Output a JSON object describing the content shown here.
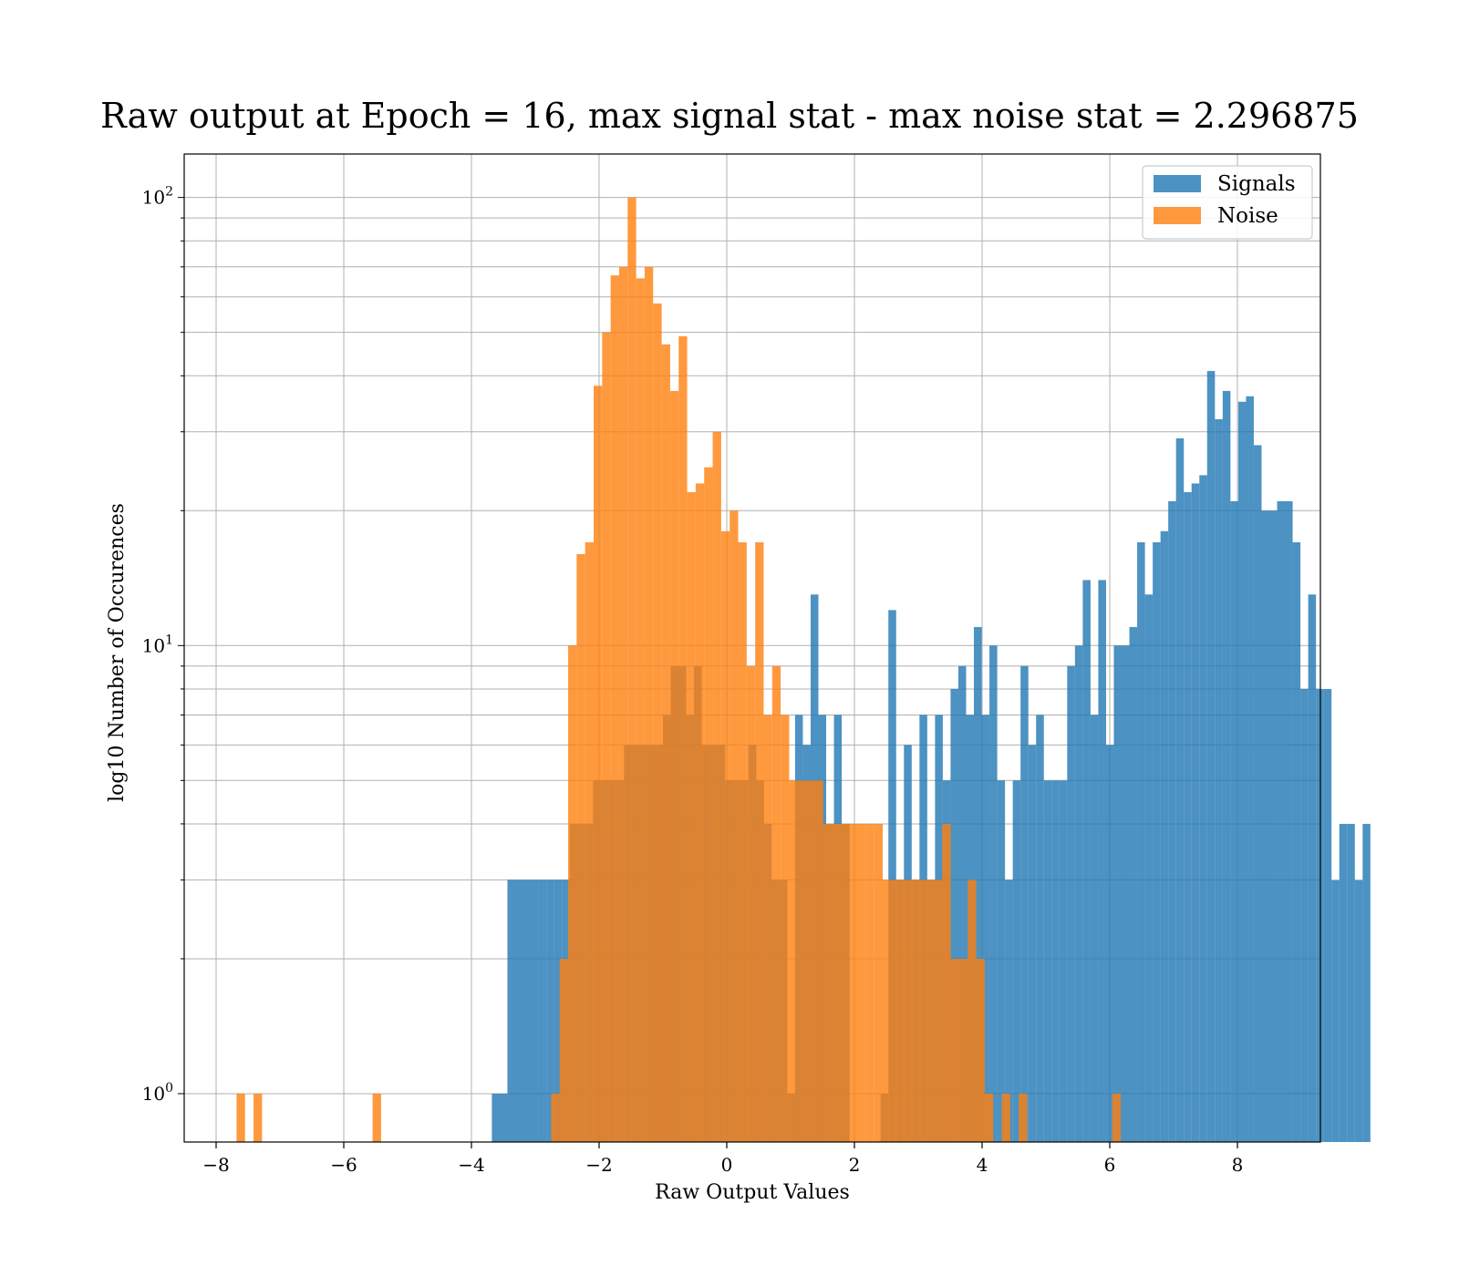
{
  "chart_data": {
    "type": "histogram",
    "title": "Raw output at Epoch = 16, max signal stat - max noise stat = 2.296875",
    "xlabel": "Raw Output Values",
    "ylabel": "log10 Number of Occurences",
    "xlim": [
      -8.5,
      9.3
    ],
    "ylim": [
      0.78,
      125
    ],
    "yscale": "log",
    "grid": true,
    "legend_position": "top-right",
    "xticks": [
      -8,
      -6,
      -4,
      -2,
      0,
      2,
      4,
      6,
      8
    ],
    "xtick_labels": [
      "−8",
      "−6",
      "−4",
      "−2",
      "0",
      "2",
      "4",
      "6",
      "8"
    ],
    "yticks": [
      {
        "value": 1,
        "base": "10",
        "exp": "0"
      },
      {
        "value": 10,
        "base": "10",
        "exp": "1"
      },
      {
        "value": 100,
        "base": "10",
        "exp": "2"
      }
    ],
    "series": [
      {
        "name": "Signals",
        "color": "#1f77b4",
        "opacity": 0.8,
        "bin_start": -3.68,
        "bin_width": 0.1218,
        "counts": [
          1,
          1,
          3,
          3,
          3,
          3,
          3,
          3,
          3,
          3,
          4,
          4,
          4,
          5,
          5,
          5,
          5,
          6,
          6,
          6,
          6,
          6,
          7,
          9,
          9,
          7,
          9,
          6,
          6,
          6,
          5,
          5,
          5,
          6,
          5,
          4,
          3,
          3,
          1,
          7,
          6,
          13,
          7,
          4,
          7,
          4,
          0,
          0,
          0,
          0,
          1,
          12,
          3,
          6,
          3,
          7,
          3,
          7,
          5,
          8,
          9,
          7,
          11,
          7,
          10,
          5,
          3,
          5,
          9,
          6,
          7,
          5,
          5,
          5,
          9,
          10,
          14,
          7,
          14,
          6,
          10,
          10,
          11,
          17,
          13,
          17,
          18,
          21,
          29,
          22,
          23,
          24,
          41,
          32,
          37,
          21,
          35,
          36,
          28,
          20,
          20,
          21,
          21,
          17,
          8,
          13,
          8,
          8,
          3,
          4,
          4,
          3,
          4
        ]
      },
      {
        "name": "Noise",
        "color": "#ff7f0e",
        "opacity": 0.8,
        "bin_start": -7.68,
        "bin_width": 0.1332,
        "counts": [
          1,
          0,
          1,
          0,
          0,
          0,
          0,
          0,
          0,
          0,
          0,
          0,
          0,
          0,
          0,
          0,
          1,
          0,
          0,
          0,
          0,
          0,
          0,
          0,
          0,
          0,
          0,
          0,
          0,
          0,
          0,
          0,
          0,
          0,
          0,
          0,
          0,
          1,
          2,
          10,
          16,
          17,
          38,
          50,
          67,
          70,
          100,
          66,
          70,
          58,
          47,
          37,
          49,
          22,
          23,
          25,
          30,
          18,
          20,
          17,
          9,
          17,
          7,
          9,
          7,
          5,
          5,
          5,
          5,
          4,
          4,
          4,
          4,
          4,
          4,
          4,
          3,
          3,
          3,
          3,
          3,
          3,
          3,
          4,
          2,
          2,
          3,
          2,
          1,
          0,
          1,
          0,
          1,
          0,
          0,
          0,
          0,
          0,
          0,
          0,
          0,
          0,
          0,
          1,
          0,
          0,
          0,
          0,
          0,
          0,
          0,
          0,
          0,
          0,
          0,
          0,
          0,
          0
        ]
      }
    ]
  }
}
